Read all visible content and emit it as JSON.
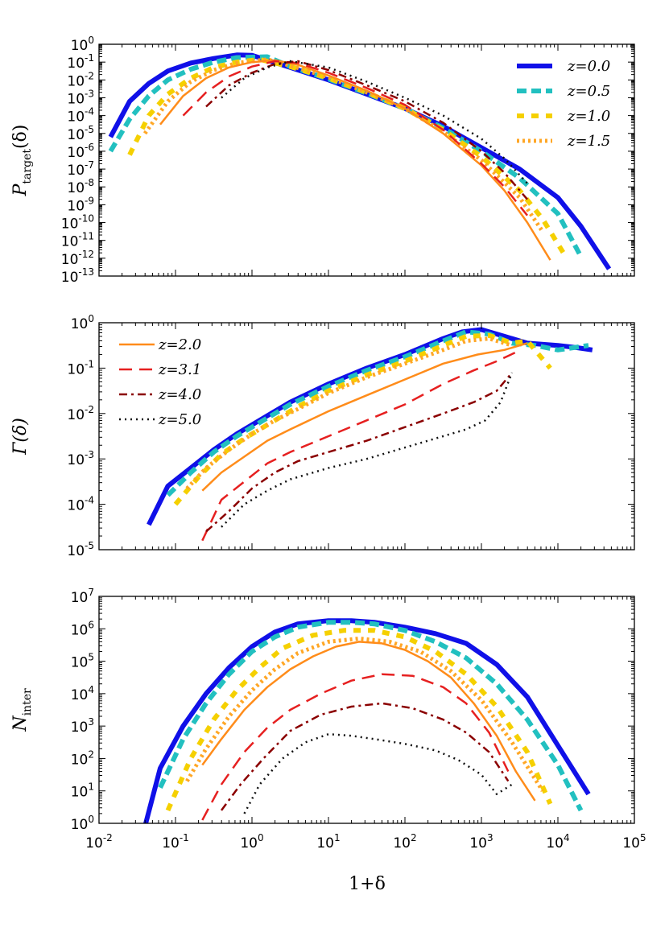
{
  "figure": {
    "xlabel": "1+δ",
    "x_ticks": [
      "10-2",
      "10-1",
      "100",
      "101",
      "102",
      "103",
      "104",
      "105"
    ]
  },
  "chart_data": [
    {
      "type": "line",
      "title": "",
      "ylabel": "P_target(δ)",
      "ylabel_main": "P",
      "ylabel_sub": "target",
      "ylabel_rest": "(δ)",
      "xlim_log10": [
        -2,
        5
      ],
      "ylim_log10": [
        -13,
        0
      ],
      "y_ticks": [
        "10-13",
        "10-12",
        "10-11",
        "10-10",
        "10-9",
        "10-8",
        "10-7",
        "10-6",
        "10-5",
        "10-4",
        "10-3",
        "10-2",
        "10-1",
        "100"
      ],
      "legend": [
        "z=0.0",
        "z=0.5",
        "z=1.0",
        "z=1.5"
      ],
      "legend_position": "top-right",
      "series": [
        {
          "name": "z=0.0",
          "color": "#1010e8",
          "dash": "solid",
          "width": 6,
          "x_log10": [
            -1.85,
            -1.6,
            -1.35,
            -1.1,
            -0.8,
            -0.5,
            -0.2,
            0.0,
            0.5,
            1.0,
            1.5,
            2.0,
            2.5,
            3.0,
            3.5,
            4.0,
            4.3,
            4.67
          ],
          "y_log10": [
            -5.2,
            -3.2,
            -2.2,
            -1.5,
            -1.05,
            -0.8,
            -0.6,
            -0.62,
            -1.3,
            -2.0,
            -2.8,
            -3.6,
            -4.6,
            -5.8,
            -7.0,
            -8.6,
            -10.2,
            -12.6
          ]
        },
        {
          "name": "z=0.5",
          "color": "#22c0c0",
          "dash": "12 6",
          "width": 6,
          "x_log10": [
            -1.85,
            -1.6,
            -1.35,
            -1.1,
            -0.8,
            -0.5,
            -0.2,
            0.2,
            0.5,
            1.0,
            1.5,
            2.0,
            2.5,
            3.0,
            3.5,
            4.0,
            4.3
          ],
          "y_log10": [
            -6.0,
            -4.2,
            -2.9,
            -2.0,
            -1.4,
            -1.0,
            -0.75,
            -0.7,
            -1.25,
            -1.95,
            -2.75,
            -3.6,
            -4.7,
            -6.0,
            -7.5,
            -9.5,
            -11.9
          ]
        },
        {
          "name": "z=1.0",
          "color": "#f5d000",
          "dash": "9 9",
          "width": 6,
          "x_log10": [
            -1.6,
            -1.35,
            -1.1,
            -0.8,
            -0.5,
            -0.2,
            0.1,
            0.5,
            1.0,
            1.5,
            2.0,
            2.5,
            3.0,
            3.5,
            3.8,
            4.1
          ],
          "y_log10": [
            -6.2,
            -4.0,
            -2.8,
            -1.9,
            -1.3,
            -1.0,
            -0.85,
            -1.25,
            -1.9,
            -2.7,
            -3.6,
            -4.8,
            -6.3,
            -8.2,
            -9.8,
            -11.9
          ]
        },
        {
          "name": "z=1.5",
          "color": "#ffa726",
          "dash": "3 4",
          "width": 5,
          "x_log10": [
            -1.4,
            -1.1,
            -0.8,
            -0.5,
            -0.2,
            0.2,
            0.5,
            1.0,
            1.5,
            2.0,
            2.5,
            3.0,
            3.5,
            3.8
          ],
          "y_log10": [
            -5.0,
            -3.2,
            -2.1,
            -1.45,
            -1.05,
            -0.85,
            -1.2,
            -1.85,
            -2.7,
            -3.6,
            -4.9,
            -6.5,
            -8.6,
            -10.5
          ]
        },
        {
          "name": "z=2.0",
          "color": "#ff8c1a",
          "dash": "solid",
          "width": 2.5,
          "x_log10": [
            -1.2,
            -0.9,
            -0.6,
            -0.3,
            0.0,
            0.3,
            0.6,
            1.0,
            1.5,
            2.0,
            2.5,
            3.0,
            3.3,
            3.6,
            3.9
          ],
          "y_log10": [
            -4.5,
            -2.9,
            -1.9,
            -1.3,
            -1.0,
            -0.9,
            -1.15,
            -1.75,
            -2.6,
            -3.6,
            -5.0,
            -6.8,
            -8.2,
            -10.0,
            -12.1
          ]
        },
        {
          "name": "z=3.1",
          "color": "#e62020",
          "dash": "16 9",
          "width": 2.5,
          "x_log10": [
            -0.9,
            -0.6,
            -0.3,
            0.0,
            0.3,
            0.6,
            1.0,
            1.5,
            2.0,
            2.5,
            3.0,
            3.3,
            3.6
          ],
          "y_log10": [
            -4.0,
            -2.7,
            -1.8,
            -1.25,
            -0.95,
            -1.05,
            -1.6,
            -2.45,
            -3.4,
            -4.8,
            -6.7,
            -8.0,
            -9.6
          ]
        },
        {
          "name": "z=4.0",
          "color": "#8b0000",
          "dash": "10 5 3 5",
          "width": 2.5,
          "x_log10": [
            -0.6,
            -0.3,
            0.0,
            0.3,
            0.6,
            1.0,
            1.5,
            2.0,
            2.5,
            3.0,
            3.3,
            3.6
          ],
          "y_log10": [
            -3.5,
            -2.3,
            -1.6,
            -1.1,
            -0.95,
            -1.45,
            -2.3,
            -3.2,
            -4.4,
            -6.0,
            -7.2,
            -8.7
          ]
        },
        {
          "name": "z=5.0",
          "color": "#111111",
          "dash": "2 5",
          "width": 2.5,
          "x_log10": [
            -0.4,
            -0.1,
            0.2,
            0.5,
            1.0,
            1.5,
            2.0,
            2.5,
            3.0,
            3.3,
            3.6
          ],
          "y_log10": [
            -3.0,
            -1.9,
            -1.3,
            -0.95,
            -1.3,
            -2.1,
            -3.0,
            -4.0,
            -5.3,
            -6.4,
            -7.8
          ]
        }
      ]
    },
    {
      "type": "line",
      "title": "",
      "ylabel": "Γ(δ)",
      "ylabel_main": "Γ(δ)",
      "ylabel_sub": "",
      "ylabel_rest": "",
      "xlim_log10": [
        -2,
        5
      ],
      "ylim_log10": [
        -5,
        0
      ],
      "y_ticks": [
        "10-5",
        "10-4",
        "10-3",
        "10-2",
        "10-1",
        "100"
      ],
      "legend": [
        "z=2.0",
        "z=3.1",
        "z=4.0",
        "z=5.0"
      ],
      "legend_position": "top-left",
      "series": [
        {
          "name": "z=0.0",
          "color": "#1010e8",
          "dash": "solid",
          "width": 6,
          "x_log10": [
            -1.35,
            -1.1,
            -0.8,
            -0.5,
            -0.2,
            0.2,
            0.5,
            1.0,
            1.5,
            2.0,
            2.5,
            2.75,
            3.0,
            3.3,
            3.6,
            4.0,
            4.25,
            4.45
          ],
          "y_log10": [
            -4.45,
            -3.6,
            -3.2,
            -2.8,
            -2.45,
            -2.05,
            -1.75,
            -1.35,
            -1.0,
            -0.7,
            -0.35,
            -0.2,
            -0.15,
            -0.3,
            -0.45,
            -0.5,
            -0.55,
            -0.6
          ]
        },
        {
          "name": "z=0.5",
          "color": "#22c0c0",
          "dash": "12 6",
          "width": 6,
          "x_log10": [
            -1.1,
            -0.8,
            -0.5,
            -0.2,
            0.2,
            0.5,
            1.0,
            1.5,
            2.0,
            2.5,
            2.8,
            3.1,
            3.4,
            3.7,
            4.0,
            4.4
          ],
          "y_log10": [
            -3.8,
            -3.3,
            -2.85,
            -2.5,
            -2.1,
            -1.8,
            -1.4,
            -1.05,
            -0.75,
            -0.4,
            -0.2,
            -0.25,
            -0.45,
            -0.5,
            -0.6,
            -0.5
          ]
        },
        {
          "name": "z=1.0",
          "color": "#f5d000",
          "dash": "9 9",
          "width": 6,
          "x_log10": [
            -1.0,
            -0.7,
            -0.4,
            -0.1,
            0.3,
            0.6,
            1.0,
            1.5,
            2.0,
            2.5,
            2.8,
            3.1,
            3.4,
            3.6,
            3.9
          ],
          "y_log10": [
            -4.0,
            -3.4,
            -2.9,
            -2.55,
            -2.15,
            -1.85,
            -1.5,
            -1.15,
            -0.85,
            -0.5,
            -0.3,
            -0.28,
            -0.45,
            -0.4,
            -1.0
          ]
        },
        {
          "name": "z=1.5",
          "color": "#ffa726",
          "dash": "3 4",
          "width": 5,
          "x_log10": [
            -0.85,
            -0.6,
            -0.3,
            0.0,
            0.3,
            0.6,
            1.0,
            1.5,
            2.0,
            2.5,
            2.8,
            3.1,
            3.4
          ],
          "y_log10": [
            -3.65,
            -3.2,
            -2.8,
            -2.45,
            -2.15,
            -1.9,
            -1.55,
            -1.2,
            -0.9,
            -0.6,
            -0.4,
            -0.35,
            -0.5
          ]
        },
        {
          "name": "z=2.0",
          "color": "#ff8c1a",
          "dash": "solid",
          "width": 2.5,
          "x_log10": [
            -0.65,
            -0.4,
            -0.1,
            0.2,
            0.5,
            1.0,
            1.5,
            2.0,
            2.5,
            2.95,
            3.3,
            3.6
          ],
          "y_log10": [
            -3.7,
            -3.3,
            -2.95,
            -2.6,
            -2.35,
            -1.95,
            -1.6,
            -1.25,
            -0.9,
            -0.7,
            -0.6,
            -0.45
          ]
        },
        {
          "name": "z=3.1",
          "color": "#e62020",
          "dash": "16 9",
          "width": 2.5,
          "x_log10": [
            -0.65,
            -0.4,
            -0.1,
            0.2,
            0.5,
            1.0,
            1.5,
            2.0,
            2.5,
            2.9,
            3.2,
            3.45
          ],
          "y_log10": [
            -4.8,
            -3.9,
            -3.5,
            -3.1,
            -2.85,
            -2.5,
            -2.15,
            -1.8,
            -1.35,
            -1.05,
            -0.85,
            -0.65
          ]
        },
        {
          "name": "z=4.0",
          "color": "#8b0000",
          "dash": "10 5 3 5",
          "width": 2.5,
          "x_log10": [
            -0.6,
            -0.3,
            0.0,
            0.3,
            0.6,
            1.0,
            1.5,
            2.0,
            2.5,
            2.9,
            3.2,
            3.4
          ],
          "y_log10": [
            -4.6,
            -4.15,
            -3.65,
            -3.3,
            -3.05,
            -2.85,
            -2.6,
            -2.3,
            -2.0,
            -1.75,
            -1.5,
            -1.1
          ]
        },
        {
          "name": "z=5.0",
          "color": "#111111",
          "dash": "2 5",
          "width": 2.5,
          "x_log10": [
            -0.4,
            -0.1,
            0.2,
            0.5,
            1.0,
            1.5,
            2.0,
            2.5,
            2.8,
            3.05,
            3.25,
            3.4
          ],
          "y_log10": [
            -4.5,
            -4.0,
            -3.7,
            -3.45,
            -3.2,
            -3.0,
            -2.75,
            -2.5,
            -2.35,
            -2.15,
            -1.75,
            -1.1
          ]
        }
      ]
    },
    {
      "type": "line",
      "title": "",
      "ylabel": "N_inter",
      "ylabel_main": "N",
      "ylabel_sub": "inter",
      "ylabel_rest": "",
      "xlim_log10": [
        -2,
        5
      ],
      "ylim_log10": [
        0,
        7
      ],
      "y_ticks": [
        "100",
        "101",
        "102",
        "103",
        "104",
        "105",
        "106",
        "107"
      ],
      "legend": [],
      "legend_position": "none",
      "series": [
        {
          "name": "z=0.0",
          "color": "#1010e8",
          "dash": "solid",
          "width": 6,
          "x_log10": [
            -1.4,
            -1.2,
            -0.9,
            -0.6,
            -0.3,
            0.0,
            0.3,
            0.6,
            1.0,
            1.3,
            1.6,
            2.0,
            2.4,
            2.8,
            3.2,
            3.6,
            4.0,
            4.4
          ],
          "y_log10": [
            -0.1,
            1.7,
            3.0,
            4.0,
            4.8,
            5.45,
            5.9,
            6.15,
            6.25,
            6.25,
            6.2,
            6.05,
            5.85,
            5.55,
            4.9,
            3.9,
            2.4,
            0.9
          ]
        },
        {
          "name": "z=0.5",
          "color": "#22c0c0",
          "dash": "12 6",
          "width": 6,
          "x_log10": [
            -1.2,
            -0.9,
            -0.6,
            -0.3,
            0.0,
            0.3,
            0.6,
            1.0,
            1.3,
            1.6,
            2.0,
            2.4,
            2.8,
            3.2,
            3.6,
            4.0,
            4.3
          ],
          "y_log10": [
            1.1,
            2.6,
            3.7,
            4.6,
            5.3,
            5.75,
            6.05,
            6.2,
            6.2,
            6.15,
            5.95,
            5.6,
            5.1,
            4.3,
            3.2,
            1.8,
            0.4
          ]
        },
        {
          "name": "z=1.0",
          "color": "#f5d000",
          "dash": "9 9",
          "width": 6,
          "x_log10": [
            -1.1,
            -0.8,
            -0.5,
            -0.2,
            0.1,
            0.4,
            0.8,
            1.2,
            1.6,
            2.0,
            2.4,
            2.8,
            3.2,
            3.6,
            3.9
          ],
          "y_log10": [
            0.4,
            2.0,
            3.2,
            4.1,
            4.8,
            5.4,
            5.8,
            5.95,
            5.95,
            5.75,
            5.3,
            4.6,
            3.6,
            2.2,
            0.6
          ]
        },
        {
          "name": "z=1.5",
          "color": "#ffa726",
          "dash": "3 4",
          "width": 5,
          "x_log10": [
            -0.85,
            -0.6,
            -0.3,
            0.0,
            0.3,
            0.6,
            1.0,
            1.4,
            1.8,
            2.2,
            2.6,
            3.0,
            3.4,
            3.8
          ],
          "y_log10": [
            1.3,
            2.3,
            3.3,
            4.1,
            4.75,
            5.25,
            5.6,
            5.7,
            5.6,
            5.3,
            4.7,
            3.8,
            2.5,
            1.0
          ]
        },
        {
          "name": "z=2.0",
          "color": "#ff8c1a",
          "dash": "solid",
          "width": 2.5,
          "x_log10": [
            -0.65,
            -0.4,
            -0.1,
            0.2,
            0.5,
            0.8,
            1.1,
            1.4,
            1.7,
            2.0,
            2.3,
            2.6,
            2.9,
            3.2,
            3.45,
            3.7
          ],
          "y_log10": [
            1.8,
            2.6,
            3.5,
            4.2,
            4.75,
            5.15,
            5.45,
            5.6,
            5.55,
            5.35,
            5.0,
            4.5,
            3.7,
            2.7,
            1.6,
            0.7
          ]
        },
        {
          "name": "z=3.1",
          "color": "#e62020",
          "dash": "16 9",
          "width": 2.5,
          "x_log10": [
            -0.65,
            -0.4,
            -0.1,
            0.2,
            0.5,
            0.9,
            1.3,
            1.7,
            2.1,
            2.5,
            2.8,
            3.1,
            3.35
          ],
          "y_log10": [
            0.1,
            1.2,
            2.2,
            2.95,
            3.5,
            4.0,
            4.4,
            4.6,
            4.55,
            4.2,
            3.7,
            2.8,
            1.6
          ]
        },
        {
          "name": "z=4.0",
          "color": "#8b0000",
          "dash": "10 5 3 5",
          "width": 2.5,
          "x_log10": [
            -0.4,
            -0.15,
            0.15,
            0.5,
            0.9,
            1.3,
            1.7,
            2.1,
            2.5,
            2.8,
            3.1,
            3.35
          ],
          "y_log10": [
            0.4,
            1.2,
            2.0,
            2.85,
            3.35,
            3.6,
            3.7,
            3.55,
            3.2,
            2.8,
            2.2,
            1.3
          ]
        },
        {
          "name": "z=5.0",
          "color": "#111111",
          "dash": "2 5",
          "width": 2.5,
          "x_log10": [
            -0.1,
            0.1,
            0.4,
            0.7,
            1.0,
            1.3,
            1.6,
            2.0,
            2.4,
            2.7,
            3.0,
            3.2,
            3.4
          ],
          "y_log10": [
            0.3,
            1.2,
            2.0,
            2.5,
            2.75,
            2.7,
            2.6,
            2.45,
            2.25,
            1.95,
            1.5,
            0.9,
            1.2
          ]
        }
      ]
    }
  ]
}
